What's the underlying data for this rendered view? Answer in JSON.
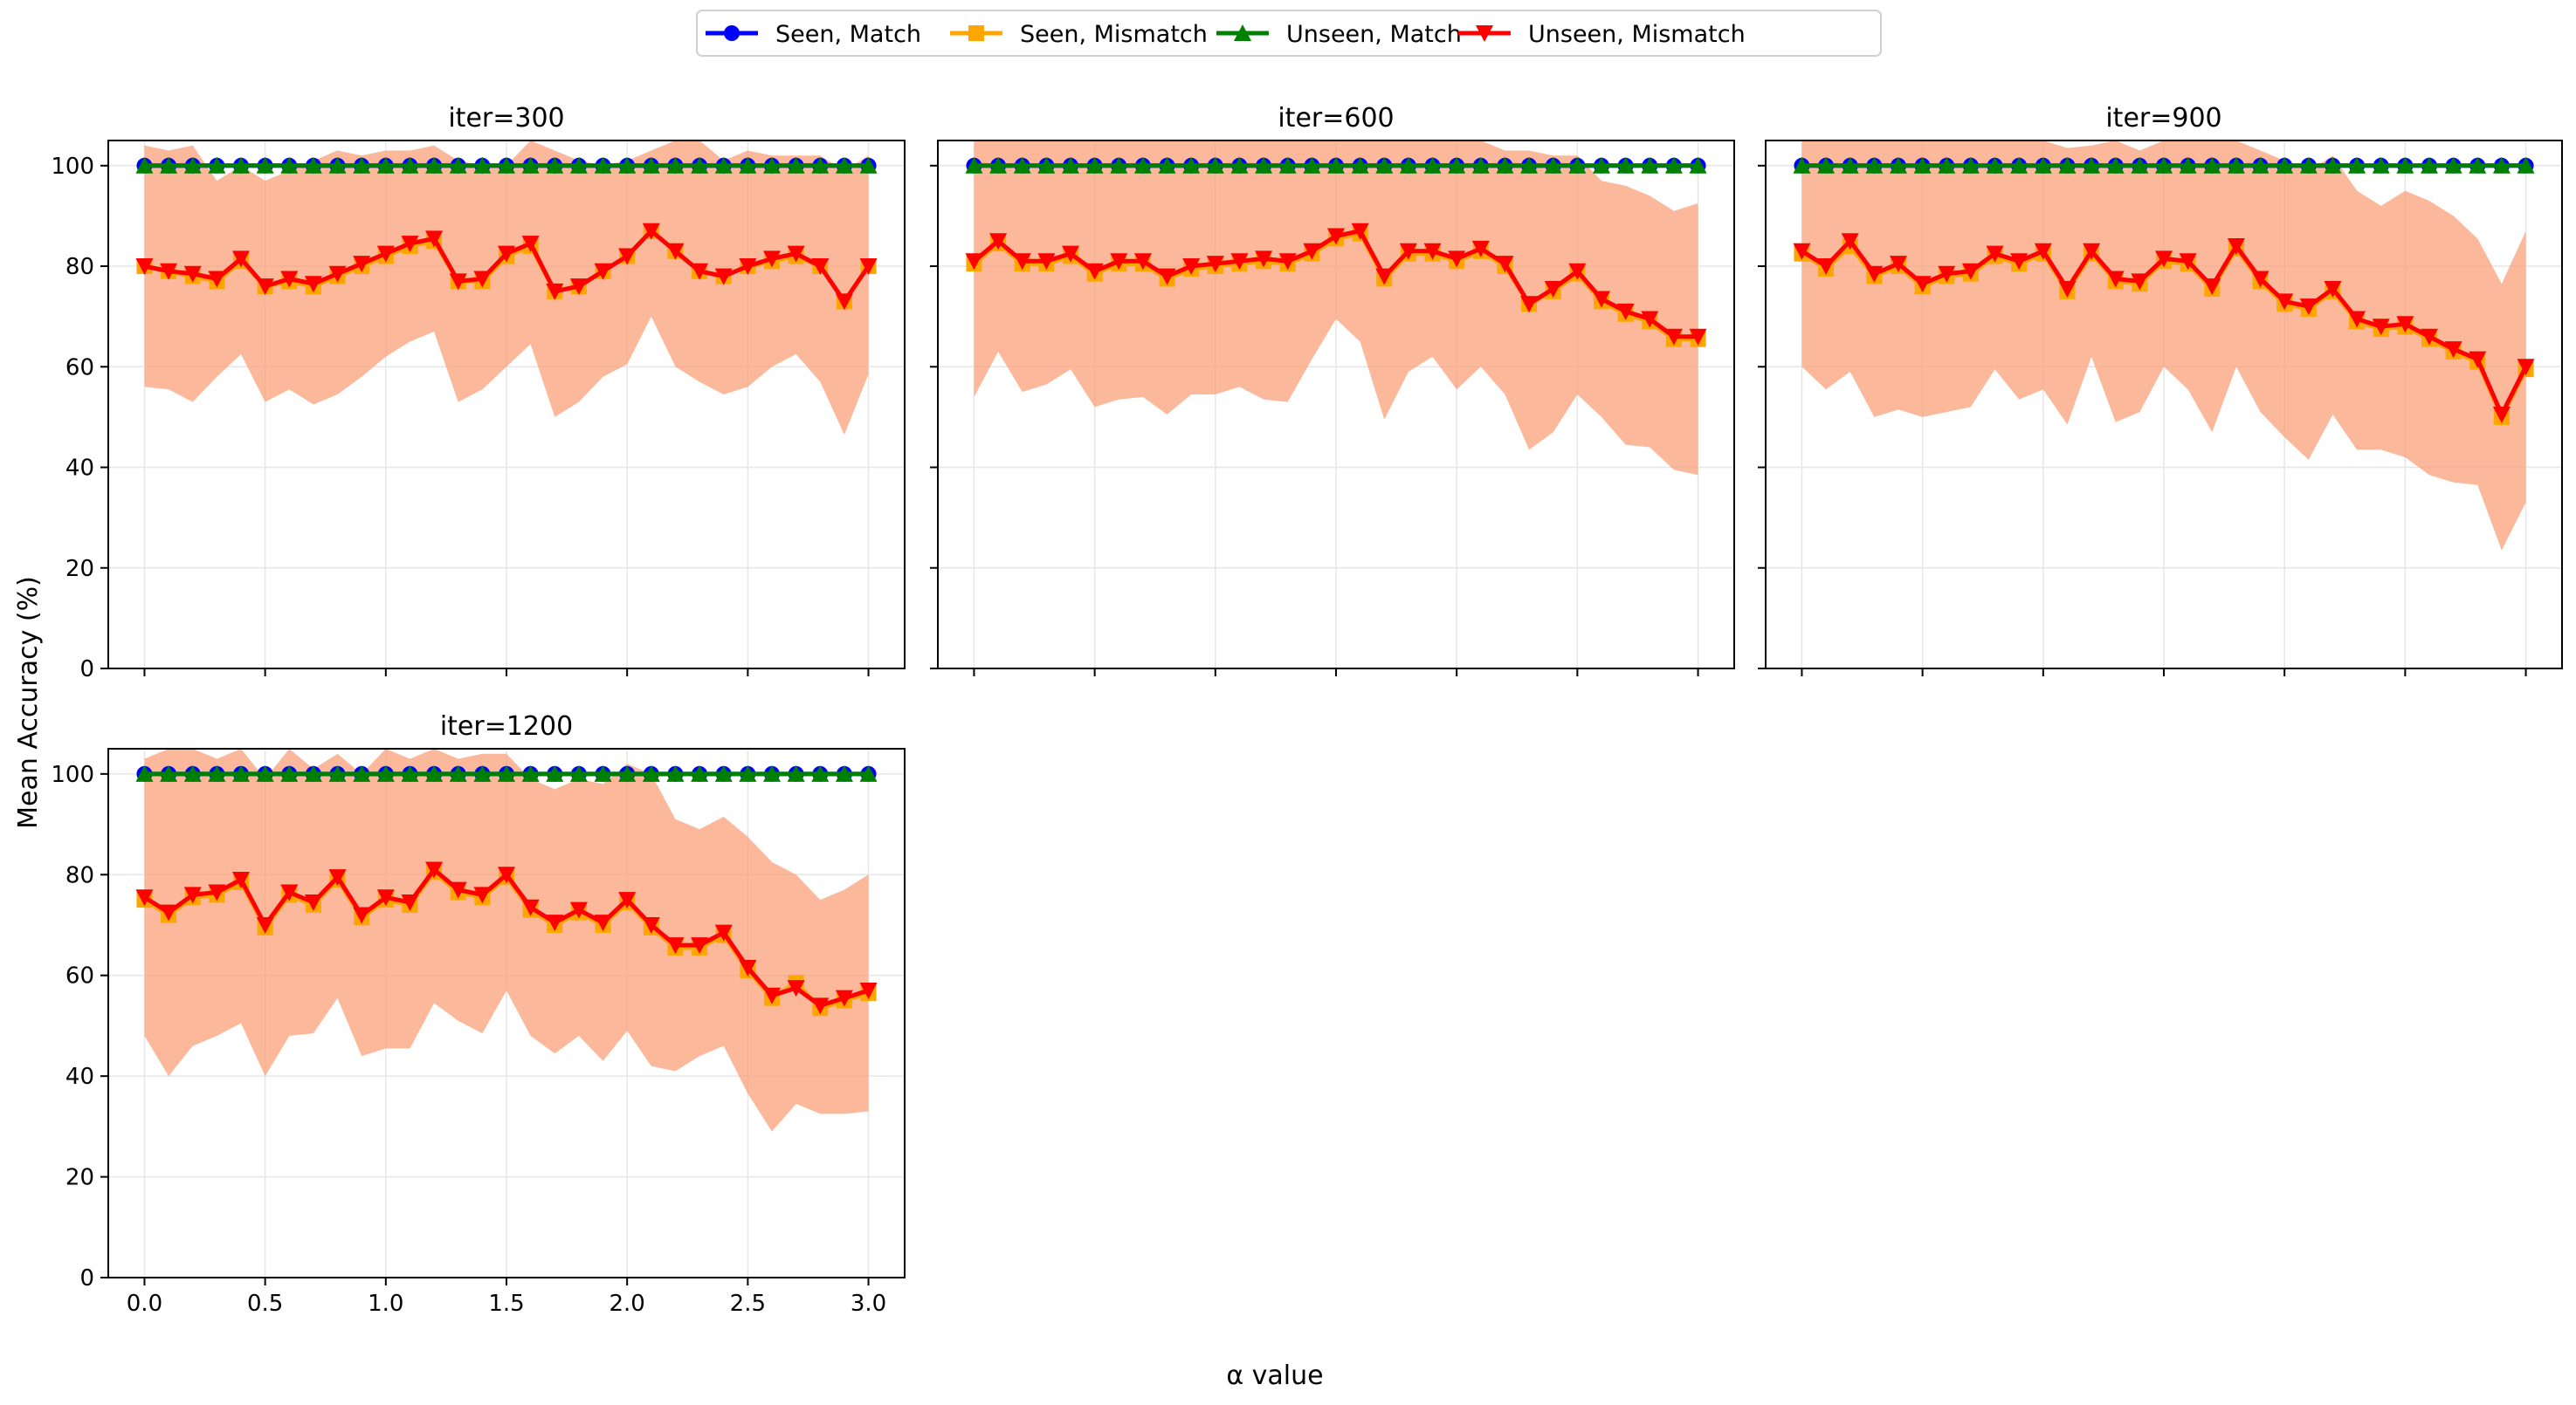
{
  "figure": {
    "xlabel": "α value",
    "ylabel": "Mean Accuracy (%)"
  },
  "legend": {
    "placement": "top-center",
    "entries": [
      {
        "label": "Seen, Match",
        "color": "#0000ff",
        "marker": "circle"
      },
      {
        "label": "Seen, Mismatch",
        "color": "#ffa500",
        "marker": "square"
      },
      {
        "label": "Unseen, Match",
        "color": "#008000",
        "marker": "triangle-up"
      },
      {
        "label": "Unseen, Mismatch",
        "color": "#ff0000",
        "marker": "triangle-down"
      }
    ]
  },
  "colors": {
    "band_mismatch": "#f9a07a",
    "axis": "#000000",
    "grid": "#e6e6e6"
  },
  "chart_data": [
    {
      "type": "line",
      "title": "iter=300",
      "xlabel": "",
      "ylabel": "Mean Accuracy (%)",
      "x": [
        0.0,
        0.1,
        0.2,
        0.3,
        0.4,
        0.5,
        0.6,
        0.7,
        0.8,
        0.9,
        1.0,
        1.1,
        1.2,
        1.3,
        1.4,
        1.5,
        1.6,
        1.7,
        1.8,
        1.9,
        2.0,
        2.1,
        2.2,
        2.3,
        2.4,
        2.5,
        2.6,
        2.7,
        2.8,
        2.9,
        3.0
      ],
      "xlim": [
        -0.15,
        3.15
      ],
      "ylim": [
        0,
        105
      ],
      "xticks": [
        "0.0",
        "0.5",
        "1.0",
        "1.5",
        "2.0",
        "2.5",
        "3.0"
      ],
      "yticks": [
        "0",
        "20",
        "40",
        "60",
        "80",
        "100"
      ],
      "grid": true,
      "series": [
        {
          "name": "Seen, Match",
          "values": [
            100,
            100,
            100,
            100,
            100,
            100,
            100,
            100,
            100,
            100,
            100,
            100,
            100,
            100,
            100,
            100,
            100,
            100,
            100,
            100,
            100,
            100,
            100,
            100,
            100,
            100,
            100,
            100,
            100,
            100,
            100
          ]
        },
        {
          "name": "Seen, Mismatch",
          "values": [
            80,
            79,
            78,
            77,
            81,
            76,
            77,
            76,
            78,
            80,
            82,
            84,
            85,
            77,
            77,
            82,
            84,
            75,
            76,
            79,
            82,
            87,
            83,
            79,
            78,
            80,
            81,
            82,
            80,
            73,
            80
          ]
        },
        {
          "name": "Unseen, Match",
          "values": [
            100,
            100,
            100,
            100,
            100,
            100,
            100,
            100,
            100,
            100,
            100,
            100,
            100,
            100,
            100,
            100,
            100,
            100,
            100,
            100,
            100,
            100,
            100,
            100,
            100,
            100,
            100,
            100,
            100,
            100,
            100
          ]
        },
        {
          "name": "Unseen, Mismatch",
          "values": [
            80,
            79,
            78.5,
            77.5,
            81.5,
            76,
            77.5,
            76.5,
            78.5,
            80.5,
            82.5,
            84.5,
            85.5,
            77,
            77.5,
            82.5,
            84.5,
            75,
            76,
            79,
            82,
            87,
            83,
            79,
            78,
            80,
            81.5,
            82.5,
            80,
            73,
            80
          ]
        }
      ],
      "band": {
        "upper": [
          104,
          103,
          104,
          97,
          100,
          97,
          99,
          101,
          103,
          102,
          103,
          103,
          104,
          101,
          100,
          100,
          105,
          103,
          101,
          100,
          101,
          103,
          105,
          105,
          101,
          103,
          102,
          102,
          102,
          99,
          102
        ],
        "lower": [
          56,
          55.5,
          53,
          58,
          62.5,
          53,
          55.5,
          52.5,
          54.5,
          58,
          62,
          65,
          67,
          53,
          55.5,
          60,
          64.5,
          50,
          53,
          58,
          60.5,
          70,
          60,
          57,
          54.5,
          56,
          60,
          62.5,
          57,
          46.5,
          58.5
        ]
      }
    },
    {
      "type": "line",
      "title": "iter=600",
      "xlabel": "",
      "ylabel": "",
      "x": [
        0.0,
        0.1,
        0.2,
        0.3,
        0.4,
        0.5,
        0.6,
        0.7,
        0.8,
        0.9,
        1.0,
        1.1,
        1.2,
        1.3,
        1.4,
        1.5,
        1.6,
        1.7,
        1.8,
        1.9,
        2.0,
        2.1,
        2.2,
        2.3,
        2.4,
        2.5,
        2.6,
        2.7,
        2.8,
        2.9,
        3.0
      ],
      "xlim": [
        -0.15,
        3.15
      ],
      "ylim": [
        0,
        105
      ],
      "xticks": [
        "0.0",
        "0.5",
        "1.0",
        "1.5",
        "2.0",
        "2.5",
        "3.0"
      ],
      "yticks": [
        "0",
        "20",
        "40",
        "60",
        "80",
        "100"
      ],
      "grid": true,
      "series": [
        {
          "name": "Seen, Match",
          "values": [
            100,
            100,
            100,
            100,
            100,
            100,
            100,
            100,
            100,
            100,
            100,
            100,
            100,
            100,
            100,
            100,
            100,
            100,
            100,
            100,
            100,
            100,
            100,
            100,
            100,
            100,
            100,
            100,
            100,
            100,
            100
          ]
        },
        {
          "name": "Seen, Mismatch",
          "values": [
            80.5,
            84.5,
            80.5,
            80.5,
            82,
            78.5,
            80.5,
            80.5,
            77.5,
            79.5,
            80,
            80.5,
            81,
            80.5,
            82.5,
            85.5,
            86.5,
            77.5,
            82.5,
            82.5,
            81,
            83,
            80,
            72.5,
            75,
            78.5,
            73,
            70.5,
            69,
            65.5,
            65.5
          ]
        },
        {
          "name": "Unseen, Match",
          "values": [
            100,
            100,
            100,
            100,
            100,
            100,
            100,
            100,
            100,
            100,
            100,
            100,
            100,
            100,
            100,
            100,
            100,
            100,
            100,
            100,
            100,
            100,
            100,
            100,
            100,
            100,
            100,
            100,
            100,
            100,
            100
          ]
        },
        {
          "name": "Unseen, Mismatch",
          "values": [
            81,
            85,
            81,
            81,
            82.5,
            79,
            81,
            81,
            78,
            80,
            80.5,
            81,
            81.5,
            81,
            83,
            86,
            87,
            78,
            83,
            83,
            81.5,
            83.5,
            80.5,
            72.5,
            75.5,
            79,
            73.5,
            71,
            69.5,
            66,
            66
          ]
        }
      ],
      "band": {
        "upper": [
          105,
          105,
          105,
          105,
          105,
          105,
          105,
          105,
          105,
          105,
          105,
          105,
          105,
          105,
          105,
          105,
          105,
          105,
          105,
          105,
          105,
          105,
          103,
          103,
          102,
          102,
          97,
          96,
          94,
          91,
          92.5
        ],
        "lower": [
          54,
          63,
          55,
          56.5,
          59.5,
          52,
          53.5,
          54,
          50.5,
          54.5,
          54.5,
          56,
          53.5,
          53,
          61.5,
          69.5,
          65,
          49.5,
          59,
          62,
          55.5,
          60,
          54.5,
          43.5,
          47,
          54.5,
          50,
          44.5,
          44,
          39.5,
          38.5
        ]
      }
    },
    {
      "type": "line",
      "title": "iter=900",
      "xlabel": "",
      "ylabel": "",
      "x": [
        0.0,
        0.1,
        0.2,
        0.3,
        0.4,
        0.5,
        0.6,
        0.7,
        0.8,
        0.9,
        1.0,
        1.1,
        1.2,
        1.3,
        1.4,
        1.5,
        1.6,
        1.7,
        1.8,
        1.9,
        2.0,
        2.1,
        2.2,
        2.3,
        2.4,
        2.5,
        2.6,
        2.7,
        2.8,
        2.9,
        3.0
      ],
      "xlim": [
        -0.15,
        3.15
      ],
      "ylim": [
        0,
        105
      ],
      "xticks": [
        "0.0",
        "0.5",
        "1.0",
        "1.5",
        "2.0",
        "2.5",
        "3.0"
      ],
      "yticks": [
        "0",
        "20",
        "40",
        "60",
        "80",
        "100"
      ],
      "grid": true,
      "series": [
        {
          "name": "Seen, Match",
          "values": [
            100,
            100,
            100,
            100,
            100,
            100,
            100,
            100,
            100,
            100,
            100,
            100,
            100,
            100,
            100,
            100,
            100,
            100,
            100,
            100,
            100,
            100,
            100,
            100,
            100,
            100,
            100,
            100,
            100,
            100,
            100
          ]
        },
        {
          "name": "Seen, Mismatch",
          "values": [
            82.5,
            79.5,
            84,
            78,
            80,
            76,
            78,
            78.5,
            82,
            80.5,
            82.5,
            75,
            82.5,
            77,
            76.5,
            81,
            80.5,
            75.5,
            83.5,
            77,
            72.5,
            71.5,
            75,
            69,
            67.5,
            68,
            65.5,
            63,
            61,
            50,
            59.5
          ]
        },
        {
          "name": "Unseen, Match",
          "values": [
            100,
            100,
            100,
            100,
            100,
            100,
            100,
            100,
            100,
            100,
            100,
            100,
            100,
            100,
            100,
            100,
            100,
            100,
            100,
            100,
            100,
            100,
            100,
            100,
            100,
            100,
            100,
            100,
            100,
            100,
            100
          ]
        },
        {
          "name": "Unseen, Mismatch",
          "values": [
            83,
            80,
            85,
            78.5,
            80.5,
            76.5,
            78.5,
            79,
            82.5,
            81,
            83,
            75.5,
            83,
            77.5,
            77,
            81.5,
            81,
            76,
            84,
            77.5,
            73,
            72,
            75.5,
            69.5,
            68,
            68.5,
            66,
            63.5,
            61.5,
            50.5,
            60
          ]
        }
      ],
      "band": {
        "upper": [
          105,
          105,
          105,
          105,
          105,
          105,
          105,
          105,
          105,
          105,
          105,
          103.5,
          104,
          105,
          103,
          105,
          105,
          105,
          105,
          103,
          101,
          99,
          102,
          95,
          92,
          95,
          93,
          90,
          85.5,
          76.5,
          87
        ],
        "lower": [
          60,
          55.5,
          59,
          50,
          51.5,
          50,
          51,
          52,
          59.5,
          53.5,
          55.5,
          48.5,
          62,
          49,
          51,
          60,
          55.5,
          47,
          60,
          51,
          46,
          41.5,
          50.5,
          43.5,
          43.5,
          42,
          38.5,
          37,
          36.5,
          23.5,
          33
        ]
      }
    },
    {
      "type": "line",
      "title": "iter=1200",
      "xlabel": "α value",
      "ylabel": "Mean Accuracy (%)",
      "x": [
        0.0,
        0.1,
        0.2,
        0.3,
        0.4,
        0.5,
        0.6,
        0.7,
        0.8,
        0.9,
        1.0,
        1.1,
        1.2,
        1.3,
        1.4,
        1.5,
        1.6,
        1.7,
        1.8,
        1.9,
        2.0,
        2.1,
        2.2,
        2.3,
        2.4,
        2.5,
        2.6,
        2.7,
        2.8,
        2.9,
        3.0
      ],
      "xlim": [
        -0.15,
        3.15
      ],
      "ylim": [
        0,
        105
      ],
      "xticks": [
        "0.0",
        "0.5",
        "1.0",
        "1.5",
        "2.0",
        "2.5",
        "3.0"
      ],
      "yticks": [
        "0",
        "20",
        "40",
        "60",
        "80",
        "100"
      ],
      "grid": true,
      "series": [
        {
          "name": "Seen, Match",
          "values": [
            100,
            100,
            100,
            100,
            100,
            100,
            100,
            100,
            100,
            100,
            100,
            100,
            100,
            100,
            100,
            100,
            100,
            100,
            100,
            100,
            100,
            100,
            100,
            100,
            100,
            100,
            100,
            100,
            100,
            100,
            100
          ]
        },
        {
          "name": "Seen, Mismatch",
          "values": [
            75,
            72,
            75.5,
            76,
            78.5,
            69.5,
            76,
            74,
            79,
            71.5,
            75,
            74,
            80.5,
            76.5,
            75.5,
            79.5,
            73,
            70,
            72.5,
            70,
            74.5,
            69.5,
            65.5,
            65.5,
            68,
            61,
            55.5,
            58.5,
            53.5,
            55,
            56.5
          ]
        },
        {
          "name": "Unseen, Match",
          "values": [
            100,
            100,
            100,
            100,
            100,
            100,
            100,
            100,
            100,
            100,
            100,
            100,
            100,
            100,
            100,
            100,
            100,
            100,
            100,
            100,
            100,
            100,
            100,
            100,
            100,
            100,
            100,
            100,
            100,
            100,
            100
          ]
        },
        {
          "name": "Unseen, Mismatch",
          "values": [
            75.5,
            72.5,
            76,
            76.5,
            79,
            70,
            76.5,
            74.5,
            79.5,
            72,
            75.5,
            74.5,
            81,
            77,
            76,
            80,
            73.5,
            70.5,
            73,
            70.5,
            75,
            70,
            66,
            66,
            68.5,
            61.5,
            56,
            57.5,
            54,
            55.5,
            57
          ]
        }
      ],
      "band": {
        "upper": [
          103,
          105,
          105,
          103,
          105,
          99,
          105,
          101,
          104,
          100,
          105,
          103,
          105,
          103,
          104,
          104,
          99,
          97,
          99,
          98,
          102,
          100,
          91,
          89,
          91.5,
          87.5,
          82.5,
          80,
          75,
          77,
          80
        ],
        "lower": [
          48,
          40,
          46,
          48,
          50.5,
          40,
          48,
          48.5,
          55.5,
          44,
          45.5,
          45.5,
          54.5,
          51,
          48.5,
          57,
          48,
          44.5,
          48,
          43,
          49,
          42,
          41,
          44,
          46,
          36.5,
          29,
          34.5,
          32.5,
          32.5,
          33
        ]
      }
    }
  ]
}
